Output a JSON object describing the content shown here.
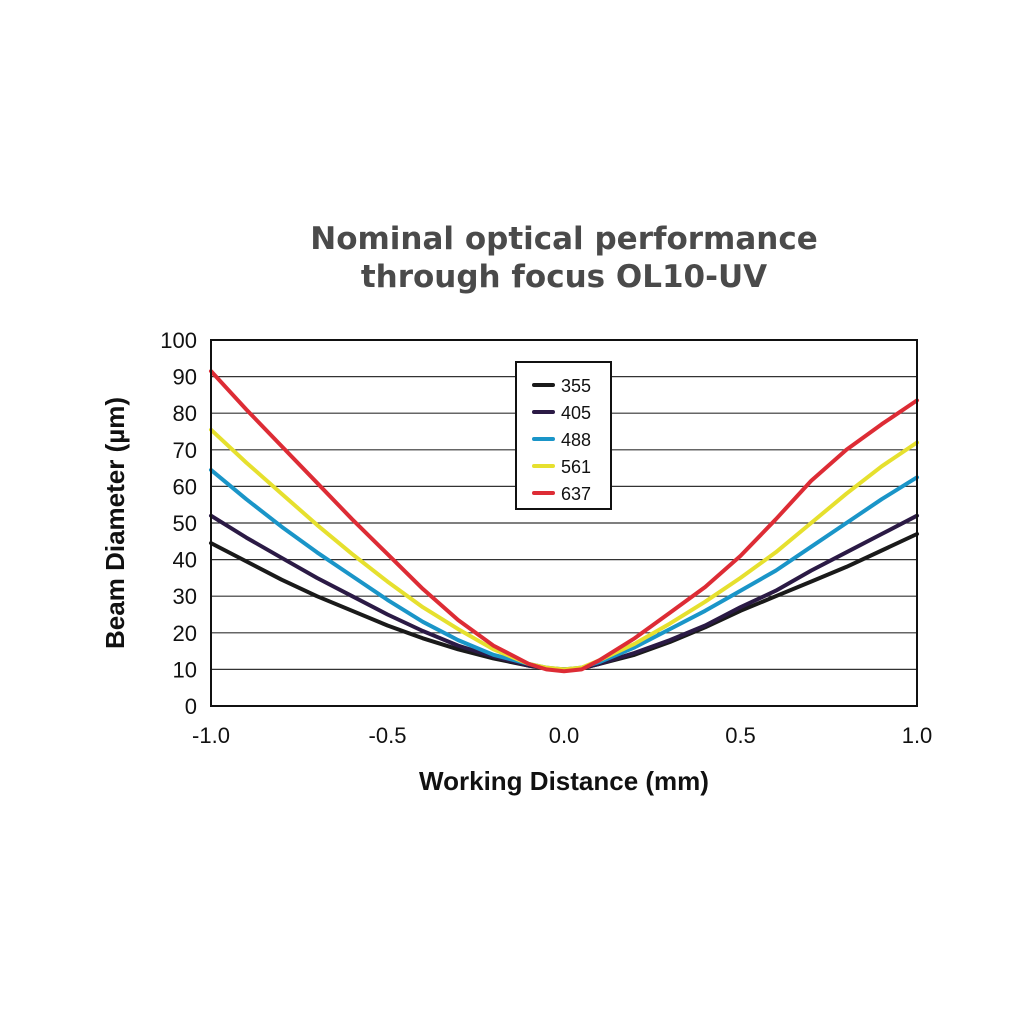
{
  "chart_data": {
    "type": "line",
    "title": [
      "Nominal optical performance",
      "through focus OL10-UV"
    ],
    "xlabel": "Working Distance (mm)",
    "ylabel": "Beam Diameter (µm)",
    "xlim": [
      -1.0,
      1.0
    ],
    "ylim": [
      0,
      100
    ],
    "x_ticks": [
      "-1.0",
      "-0.5",
      "0.0",
      "0.5",
      "1.0"
    ],
    "x_tick_values": [
      -1.0,
      -0.5,
      0.0,
      0.5,
      1.0
    ],
    "y_ticks": [
      "0",
      "10",
      "20",
      "30",
      "40",
      "50",
      "60",
      "70",
      "80",
      "90",
      "100"
    ],
    "y_tick_values": [
      0,
      10,
      20,
      30,
      40,
      50,
      60,
      70,
      80,
      90,
      100
    ],
    "grid": "horizontal",
    "legend_position": "top-center",
    "x": [
      -1.0,
      -0.9,
      -0.8,
      -0.7,
      -0.6,
      -0.5,
      -0.4,
      -0.3,
      -0.2,
      -0.1,
      -0.05,
      0.0,
      0.05,
      0.1,
      0.2,
      0.3,
      0.4,
      0.5,
      0.6,
      0.7,
      0.8,
      0.9,
      1.0
    ],
    "series": [
      {
        "name": "355",
        "color": "#1a1a1a",
        "values": [
          44.5,
          39.5,
          34.5,
          30,
          26,
          22,
          18.5,
          15.5,
          13,
          11,
          10.3,
          10,
          10.3,
          11.5,
          14,
          17.5,
          21.5,
          26,
          30,
          34,
          38,
          42.5,
          47
        ]
      },
      {
        "name": "405",
        "color": "#2b1a45",
        "values": [
          52,
          46,
          40.5,
          35,
          30,
          25,
          20.5,
          16.5,
          13.5,
          11,
          10.3,
          10,
          10.3,
          11.5,
          14.5,
          18,
          22,
          27,
          31.5,
          37,
          42,
          47,
          52
        ]
      },
      {
        "name": "488",
        "color": "#1a95c8",
        "values": [
          64.5,
          56.5,
          49,
          42,
          35.5,
          29,
          23,
          18,
          14,
          11.5,
          10.5,
          10,
          10.5,
          12,
          16,
          21,
          26,
          31.5,
          37,
          43.5,
          50,
          56.5,
          62.5
        ]
      },
      {
        "name": "561",
        "color": "#e6e02e",
        "values": [
          75.5,
          66.5,
          58,
          49.5,
          41.5,
          34,
          27,
          21,
          15.5,
          11.5,
          10.5,
          10,
          10.5,
          12.5,
          17,
          22.5,
          28.5,
          35,
          42,
          50,
          58,
          65.5,
          72
        ]
      },
      {
        "name": "637",
        "color": "#dd2c35",
        "values": [
          91.5,
          81,
          71,
          61,
          51,
          41.5,
          32,
          23.5,
          16.5,
          11.5,
          10,
          9.5,
          10,
          12.5,
          18.5,
          25.5,
          32.5,
          41,
          51,
          61.5,
          70,
          77,
          83.5
        ]
      }
    ]
  }
}
